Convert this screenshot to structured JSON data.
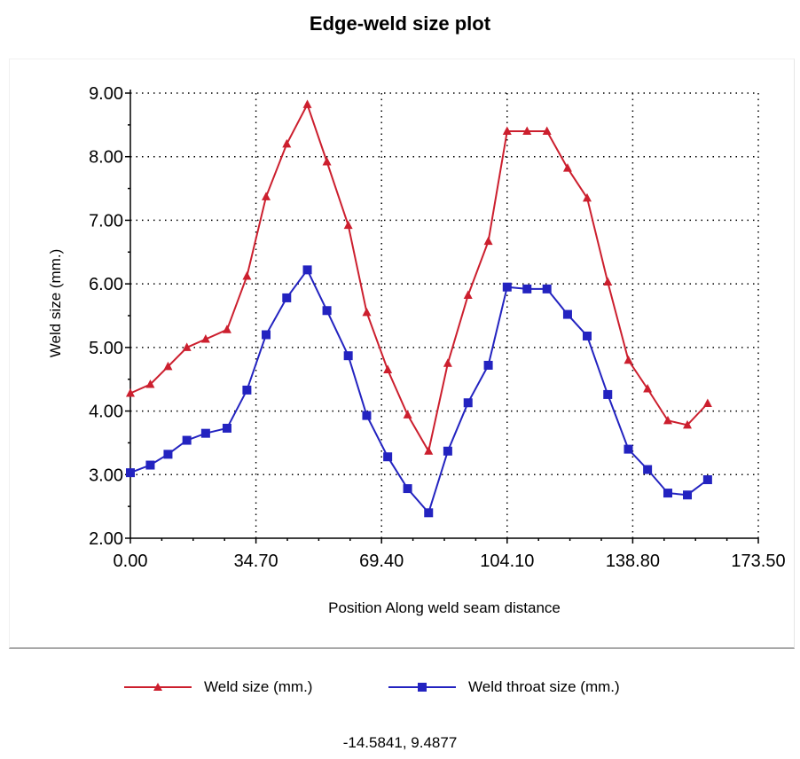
{
  "colors": {
    "weld_size": "#cc1f2e",
    "weld_throat": "#2323c0",
    "grid": "#000000"
  },
  "coordinate_readout": "-14.5841, 9.4877",
  "chart_data": {
    "type": "line",
    "title": "Edge-weld size plot",
    "xlabel": "Position Along weld seam distance",
    "ylabel": "Weld size (mm.)",
    "xlim": [
      0,
      173.5
    ],
    "ylim": [
      2,
      9
    ],
    "xticks": [
      "0.00",
      "34.70",
      "69.40",
      "104.10",
      "138.80",
      "173.50"
    ],
    "yticks": [
      "2.00",
      "3.00",
      "4.00",
      "5.00",
      "6.00",
      "7.00",
      "8.00",
      "9.00"
    ],
    "grid": true,
    "legend": "bottom",
    "series": [
      {
        "name": "Weld size (mm.)",
        "marker": "triangle",
        "color": "#cc1f2e",
        "x": [
          0,
          5.5,
          10.4,
          15.6,
          20.8,
          26.7,
          32.2,
          37.5,
          43.2,
          48.9,
          54.3,
          60.2,
          65.3,
          71.1,
          76.6,
          82.4,
          87.7,
          93.3,
          98.9,
          104.1,
          109.6,
          115.1,
          120.8,
          126.2,
          131.9,
          137.6,
          142.9,
          148.5,
          153.9,
          159.5
        ],
        "y": [
          4.28,
          4.42,
          4.7,
          5.0,
          5.13,
          5.28,
          6.12,
          7.37,
          8.2,
          8.82,
          7.92,
          6.92,
          5.55,
          4.65,
          3.94,
          3.37,
          4.75,
          5.82,
          6.67,
          8.4,
          8.4,
          8.4,
          7.82,
          7.35,
          6.03,
          4.8,
          4.35,
          3.85,
          3.78,
          4.12
        ]
      },
      {
        "name": "Weld throat size (mm.)",
        "marker": "square",
        "color": "#2323c0",
        "x": [
          0,
          5.5,
          10.4,
          15.6,
          20.8,
          26.7,
          32.2,
          37.5,
          43.2,
          48.9,
          54.3,
          60.2,
          65.3,
          71.1,
          76.6,
          82.4,
          87.7,
          93.3,
          98.9,
          104.1,
          109.6,
          115.1,
          120.8,
          126.2,
          131.9,
          137.6,
          142.9,
          148.5,
          153.9,
          159.5
        ],
        "y": [
          3.03,
          3.15,
          3.32,
          3.54,
          3.65,
          3.73,
          4.33,
          5.2,
          5.78,
          6.22,
          5.58,
          4.87,
          3.93,
          3.28,
          2.78,
          2.4,
          3.37,
          4.13,
          4.72,
          5.95,
          5.92,
          5.92,
          5.52,
          5.18,
          4.26,
          3.4,
          3.08,
          2.71,
          2.68,
          2.92
        ]
      }
    ]
  }
}
